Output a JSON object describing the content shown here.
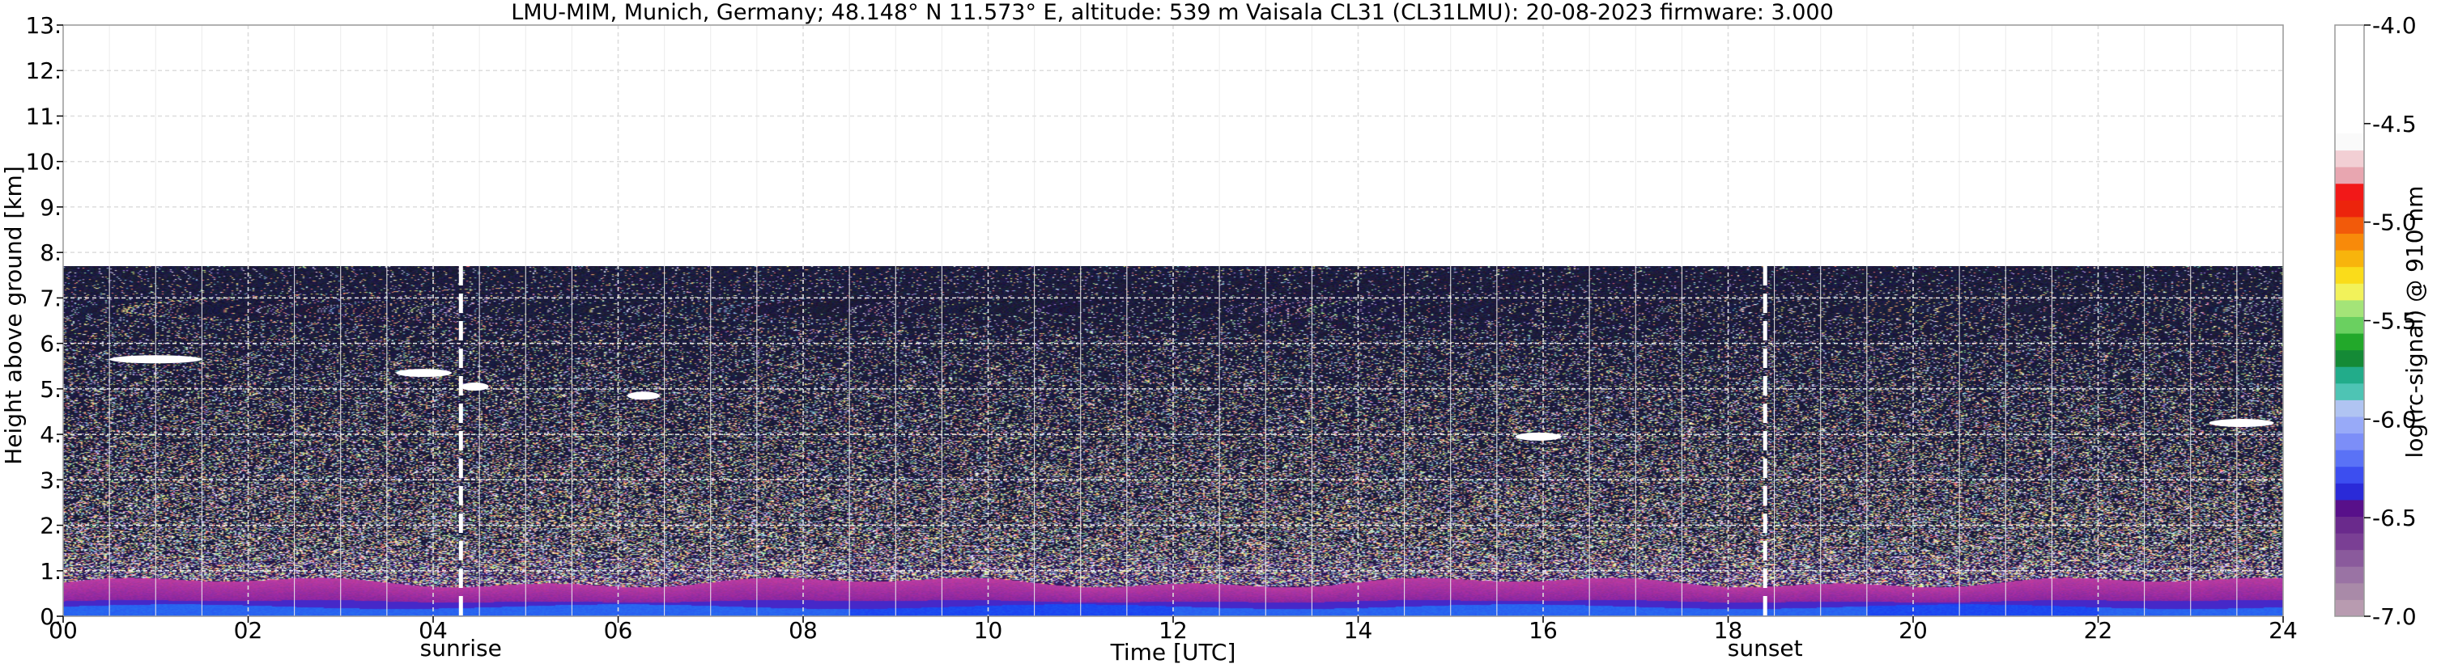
{
  "chart_data": {
    "type": "heatmap",
    "title": "LMU-MIM, Munich, Germany; 48.148° N 11.573° E, altitude: 539 m    Vaisala CL31 (CL31LMU): 20-08-2023    firmware: 3.000",
    "xlabel": "Time [UTC]",
    "ylabel": "Height above ground [km]",
    "xlim": [
      0,
      24
    ],
    "ylim": [
      0,
      13
    ],
    "x_ticks": [
      0,
      2,
      4,
      6,
      8,
      10,
      12,
      14,
      16,
      18,
      20,
      22,
      24
    ],
    "x_tick_labels": [
      "00",
      "02",
      "04",
      "06",
      "08",
      "10",
      "12",
      "14",
      "16",
      "18",
      "20",
      "22",
      "24"
    ],
    "y_ticks": [
      0,
      1,
      2,
      3,
      4,
      5,
      6,
      7,
      8,
      9,
      10,
      11,
      12,
      13
    ],
    "y_tick_labels": [
      "0.",
      "1.",
      "2.",
      "3.",
      "4.",
      "5.",
      "6.",
      "7.",
      "8.",
      "9.",
      "10.",
      "11.",
      "12.",
      "13."
    ],
    "grid": true,
    "data_top_km": 7.7,
    "markers": [
      {
        "label": "sunrise",
        "time_utc": 4.3
      },
      {
        "label": "sunset",
        "time_utc": 18.4
      }
    ],
    "cloud_layers": [
      {
        "t_start": 0.5,
        "t_end": 1.5,
        "height_km": 5.65
      },
      {
        "t_start": 3.6,
        "t_end": 4.2,
        "height_km": 5.35
      },
      {
        "t_start": 4.3,
        "t_end": 4.6,
        "height_km": 5.05
      },
      {
        "t_start": 6.1,
        "t_end": 6.45,
        "height_km": 4.85
      },
      {
        "t_start": 15.7,
        "t_end": 16.2,
        "height_km": 3.95
      },
      {
        "t_start": 23.2,
        "t_end": 23.9,
        "height_km": 4.25
      }
    ],
    "boundary_layer_km": 0.75,
    "colorbar": {
      "label": "log(rc-signal) @ 910 nm",
      "range": [
        -7.0,
        -4.0
      ],
      "ticks": [
        -7.0,
        -6.5,
        -6.0,
        -5.5,
        -5.0,
        -4.5,
        -4.0
      ],
      "tick_labels": [
        "-7.0",
        "-6.5",
        "-6.0",
        "-5.5",
        "-5.0",
        "-4.5",
        "-4.0"
      ],
      "colors": [
        "#b89bb0",
        "#a98aa8",
        "#9a73a4",
        "#8a5a9c",
        "#7a3f94",
        "#6a2a8c",
        "#58108a",
        "#2a2ad8",
        "#3c4ef0",
        "#5a72f6",
        "#7c8ef8",
        "#98aaf8",
        "#b0c4f2",
        "#4ec4b4",
        "#22ac8a",
        "#148a36",
        "#22a82a",
        "#6ad060",
        "#a4e478",
        "#f2f25a",
        "#fadc1a",
        "#f8b40c",
        "#f88a0a",
        "#f25a0a",
        "#ec240c",
        "#f21818",
        "#e8a6b0",
        "#f2cfd4",
        "#fafafa"
      ]
    }
  }
}
